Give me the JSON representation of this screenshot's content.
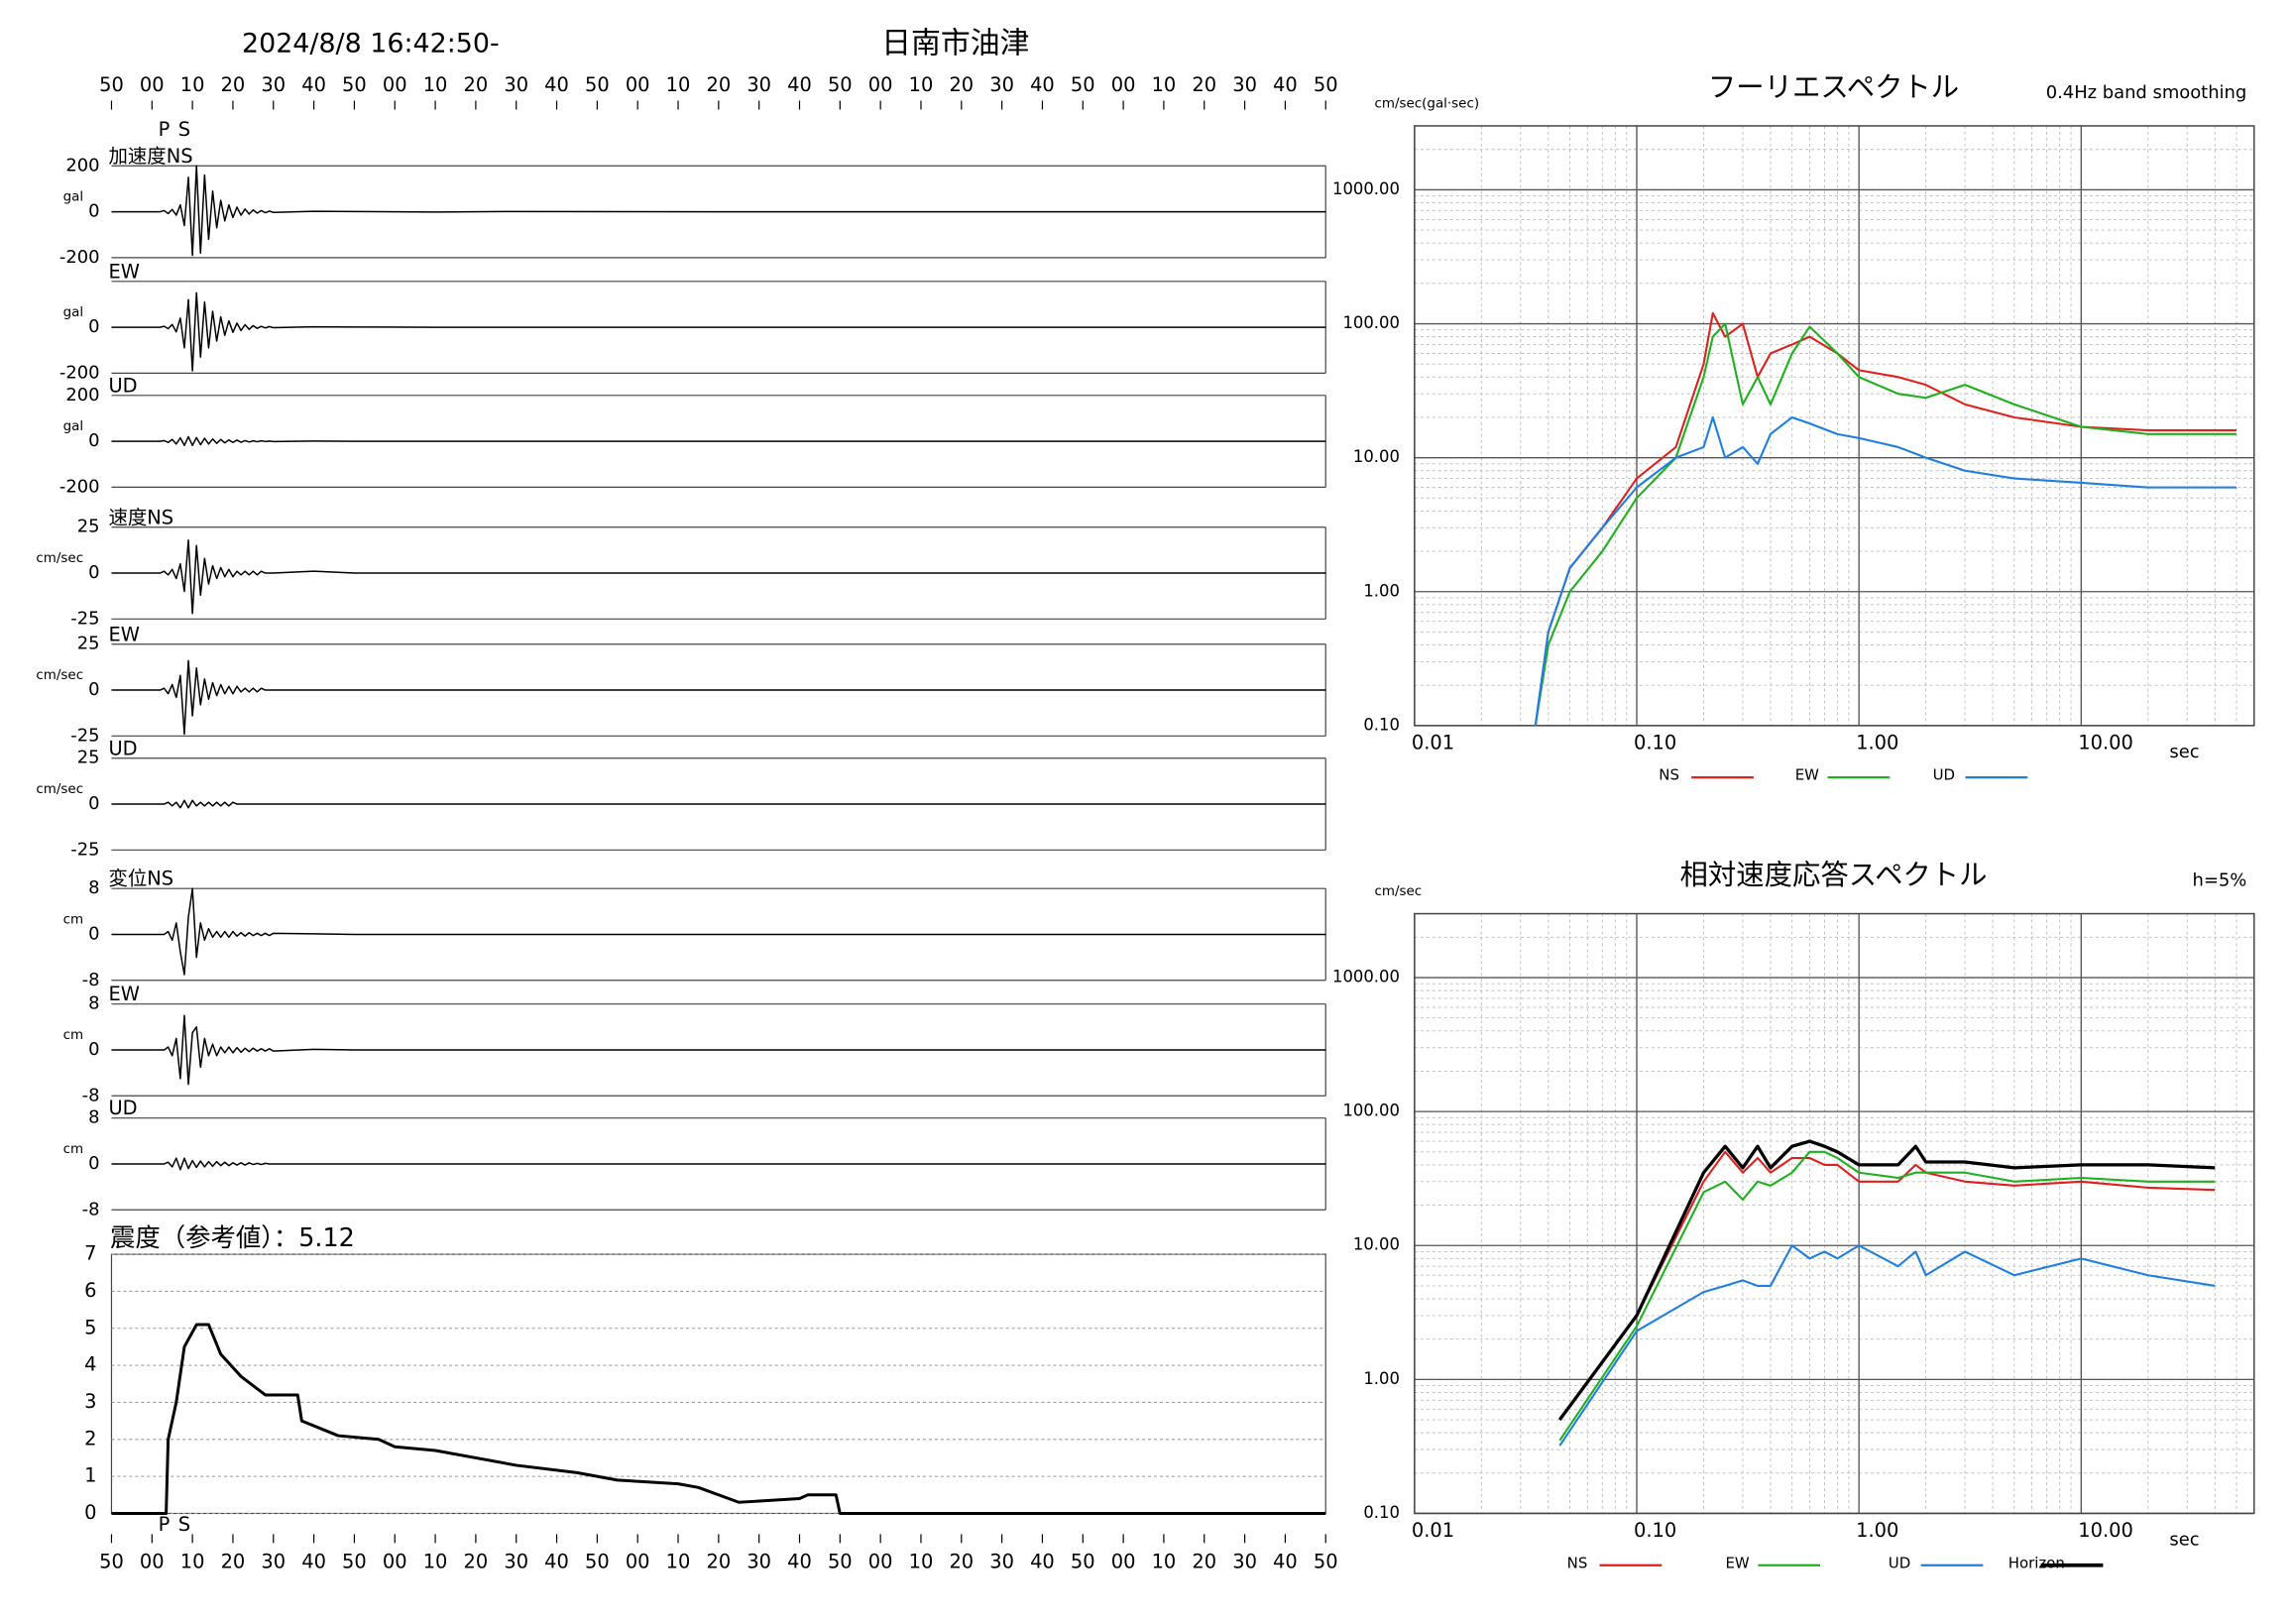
{
  "header": {
    "datetime": "2024/8/8 16:42:50-",
    "station": "日南市油津"
  },
  "chart_data": [
    {
      "type": "line",
      "xlim": [
        0,
        300
      ],
      "xticks": [
        {
          "value": 0,
          "label": "50"
        },
        {
          "value": 10,
          "label": "00"
        },
        {
          "value": 20,
          "label": "10"
        },
        {
          "value": 30,
          "label": "20"
        },
        {
          "value": 40,
          "label": "30"
        },
        {
          "value": 50,
          "label": "40"
        },
        {
          "value": 60,
          "label": "50"
        },
        {
          "value": 70,
          "label": "00"
        },
        {
          "value": 80,
          "label": "10"
        },
        {
          "value": 90,
          "label": "20"
        },
        {
          "value": 100,
          "label": "30"
        },
        {
          "value": 110,
          "label": "40"
        },
        {
          "value": 120,
          "label": "50"
        },
        {
          "value": 130,
          "label": "00"
        },
        {
          "value": 140,
          "label": "10"
        },
        {
          "value": 150,
          "label": "20"
        },
        {
          "value": 160,
          "label": "30"
        },
        {
          "value": 170,
          "label": "40"
        },
        {
          "value": 180,
          "label": "50"
        },
        {
          "value": 190,
          "label": "00"
        },
        {
          "value": 200,
          "label": "10"
        },
        {
          "value": 210,
          "label": "20"
        },
        {
          "value": 220,
          "label": "30"
        },
        {
          "value": 230,
          "label": "40"
        },
        {
          "value": 240,
          "label": "50"
        },
        {
          "value": 250,
          "label": "00"
        },
        {
          "value": 260,
          "label": "10"
        },
        {
          "value": 270,
          "label": "20"
        },
        {
          "value": 280,
          "label": "30"
        },
        {
          "value": 290,
          "label": "40"
        },
        {
          "value": 300,
          "label": "50"
        }
      ],
      "phases": [
        {
          "label": "P",
          "time": 13
        },
        {
          "label": "S",
          "time": 18
        }
      ],
      "x": [
        0,
        5,
        10,
        11,
        12,
        13,
        14,
        15,
        16,
        17,
        18,
        19,
        20,
        21,
        22,
        23,
        24,
        25,
        26,
        27,
        28,
        29,
        30,
        31,
        32,
        33,
        34,
        35,
        36,
        37,
        38,
        39,
        40,
        50,
        60,
        80,
        100,
        150,
        200,
        250,
        300
      ],
      "panels": [
        {
          "label": "加速度NS",
          "unit": "gal",
          "ylim": [
            -200,
            200
          ],
          "yticks": [
            200,
            0,
            -200
          ],
          "color": "#000000",
          "values": [
            0,
            0,
            0,
            0,
            0,
            5,
            -8,
            10,
            -15,
            30,
            -60,
            150,
            -190,
            200,
            -180,
            160,
            -120,
            90,
            -70,
            50,
            -40,
            30,
            -25,
            20,
            -15,
            12,
            -10,
            8,
            -6,
            5,
            -4,
            3,
            -3,
            2,
            1,
            -1,
            1,
            0,
            0,
            0,
            0
          ]
        },
        {
          "label": "EW",
          "unit": "gal",
          "ylim": [
            -200,
            200
          ],
          "yticks": [
            0,
            -200
          ],
          "color": "#000000",
          "values": [
            0,
            0,
            0,
            0,
            0,
            4,
            -6,
            12,
            -20,
            40,
            -90,
            120,
            -190,
            150,
            -130,
            110,
            -90,
            70,
            -60,
            45,
            -35,
            28,
            -22,
            18,
            -14,
            11,
            -9,
            7,
            -5,
            4,
            -3,
            3,
            -2,
            2,
            1,
            0,
            0,
            0,
            0,
            0,
            0
          ]
        },
        {
          "label": "UD",
          "unit": "gal",
          "ylim": [
            -200,
            200
          ],
          "yticks": [
            200,
            0,
            -200
          ],
          "color": "#000000",
          "values": [
            0,
            0,
            0,
            0,
            0,
            3,
            -5,
            8,
            -12,
            15,
            -18,
            20,
            -18,
            16,
            -15,
            13,
            -12,
            10,
            -9,
            8,
            -7,
            6,
            -5,
            5,
            -4,
            3,
            -3,
            2,
            -2,
            2,
            -1,
            1,
            -1,
            1,
            0,
            0,
            0,
            0,
            0,
            0,
            0
          ]
        },
        {
          "label": "速度NS",
          "unit": "cm/sec",
          "ylim": [
            -25,
            25
          ],
          "yticks": [
            25,
            0,
            -25
          ],
          "color": "#000000",
          "values": [
            0,
            0,
            0,
            0,
            0,
            1,
            -1,
            2,
            -3,
            5,
            -10,
            18,
            -22,
            15,
            -12,
            8,
            -6,
            4,
            -3,
            3,
            -2,
            2,
            -2,
            1,
            -1,
            1,
            -1,
            1,
            -1,
            1,
            0,
            0,
            0,
            1,
            0,
            0,
            0,
            0,
            0,
            0,
            0
          ]
        },
        {
          "label": "EW",
          "unit": "cm/sec",
          "ylim": [
            -25,
            25
          ],
          "yticks": [
            25,
            0,
            -25
          ],
          "color": "#000000",
          "values": [
            0,
            0,
            0,
            0,
            0,
            1,
            -2,
            3,
            -4,
            8,
            -24,
            16,
            -14,
            12,
            -8,
            6,
            -5,
            4,
            -3,
            3,
            -2,
            2,
            -2,
            2,
            -1,
            1,
            -1,
            1,
            -1,
            1,
            0,
            0,
            0,
            0,
            0,
            0,
            0,
            0,
            0,
            0,
            0
          ]
        },
        {
          "label": "UD",
          "unit": "cm/sec",
          "ylim": [
            -25,
            25
          ],
          "yticks": [
            25,
            0,
            -25
          ],
          "color": "#000000",
          "values": [
            0,
            0,
            0,
            0,
            0,
            0,
            1,
            -1,
            1,
            -2,
            2,
            -2,
            2,
            -1,
            1,
            -1,
            1,
            -1,
            1,
            -1,
            1,
            -1,
            1,
            0,
            0,
            0,
            0,
            0,
            0,
            0,
            0,
            0,
            0,
            0,
            0,
            0,
            0,
            0,
            0,
            0,
            0
          ]
        },
        {
          "label": "変位NS",
          "unit": "cm",
          "ylim": [
            -8,
            8
          ],
          "yticks": [
            8,
            0,
            -8
          ],
          "color": "#000000",
          "values": [
            0,
            0,
            0,
            0,
            0,
            0,
            0.5,
            -1,
            2,
            -3,
            -7,
            3,
            8,
            -4,
            2,
            -1,
            1,
            -0.5,
            0.5,
            -0.5,
            0.5,
            -0.5,
            0.5,
            -0.3,
            0.3,
            -0.3,
            0.3,
            -0.2,
            0.2,
            -0.2,
            0.2,
            -0.2,
            0.2,
            0.1,
            0,
            0,
            0,
            0,
            0,
            0,
            0
          ]
        },
        {
          "label": "EW",
          "unit": "cm",
          "ylim": [
            -8,
            8
          ],
          "yticks": [
            8,
            0,
            -8
          ],
          "color": "#000000",
          "values": [
            0,
            0,
            0,
            0,
            0,
            0,
            0.5,
            -1,
            2,
            -5,
            6,
            -6,
            3,
            4,
            -3,
            2,
            -1,
            1,
            -1,
            0.5,
            -0.5,
            0.5,
            -0.5,
            0.4,
            -0.4,
            0.3,
            -0.3,
            0.3,
            -0.2,
            0.2,
            -0.2,
            0.2,
            -0.2,
            0.1,
            0,
            0,
            0,
            0,
            0,
            0,
            0
          ]
        },
        {
          "label": "UD",
          "unit": "cm",
          "ylim": [
            -8,
            8
          ],
          "yticks": [
            8,
            0,
            -8
          ],
          "color": "#000000",
          "values": [
            0,
            0,
            0,
            0,
            0,
            0,
            0.3,
            -0.5,
            1,
            -1,
            1,
            -0.8,
            0.6,
            -0.6,
            0.5,
            -0.5,
            0.4,
            -0.4,
            0.4,
            -0.3,
            0.3,
            -0.3,
            0.2,
            -0.2,
            0.2,
            -0.2,
            0.2,
            -0.1,
            0.1,
            -0.1,
            0.1,
            0,
            0,
            0,
            0,
            0,
            0,
            0,
            0,
            0,
            0
          ]
        }
      ]
    },
    {
      "type": "line",
      "title": "震度（参考値）：5.12",
      "xlim": [
        0,
        300
      ],
      "ylim": [
        0,
        7
      ],
      "yticks": [
        0,
        1,
        2,
        3,
        4,
        5,
        6,
        7
      ],
      "grid": true,
      "color": "#000000",
      "x": [
        0,
        13.5,
        14,
        16,
        18,
        21,
        24,
        27,
        32,
        38,
        46,
        47,
        56,
        66,
        70,
        80,
        100,
        115,
        125,
        140,
        145,
        155,
        170,
        172,
        179,
        180,
        300
      ],
      "values": [
        0,
        0,
        2,
        3,
        4.5,
        5.1,
        5.1,
        4.3,
        3.7,
        3.2,
        3.2,
        2.5,
        2.1,
        2.0,
        1.8,
        1.7,
        1.3,
        1.1,
        0.9,
        0.8,
        0.7,
        0.3,
        0.4,
        0.5,
        0.5,
        0,
        0
      ]
    },
    {
      "type": "line",
      "title": "フーリエスペクトル",
      "subtitle": "0.4Hz band smoothing",
      "ylabel": "cm/sec(gal·sec)",
      "xlabel": "sec",
      "xscale": "log",
      "yscale": "log",
      "grid": true,
      "xlim": [
        0.01,
        60
      ],
      "ylim": [
        0.1,
        3000
      ],
      "xticks": [
        {
          "value": 0.01,
          "label": "0.01"
        },
        {
          "value": 0.1,
          "label": "0.10"
        },
        {
          "value": 1,
          "label": "1.00"
        },
        {
          "value": 10,
          "label": "10.00"
        }
      ],
      "yticks": [
        {
          "value": 0.1,
          "label": "0.10"
        },
        {
          "value": 1,
          "label": "1.00"
        },
        {
          "value": 10,
          "label": "10.00"
        },
        {
          "value": 100,
          "label": "100.00"
        },
        {
          "value": 1000,
          "label": "1000.00"
        }
      ],
      "x": [
        0.035,
        0.04,
        0.05,
        0.07,
        0.1,
        0.15,
        0.2,
        0.22,
        0.25,
        0.3,
        0.35,
        0.4,
        0.5,
        0.6,
        0.8,
        1,
        1.5,
        2,
        3,
        5,
        10,
        20,
        50
      ],
      "series": [
        {
          "name": "NS",
          "color": "#e0201f",
          "values": [
            0.1,
            0.5,
            1.5,
            3,
            7,
            12,
            50,
            120,
            80,
            100,
            40,
            60,
            70,
            80,
            60,
            45,
            40,
            35,
            25,
            20,
            17,
            16,
            16
          ]
        },
        {
          "name": "EW",
          "color": "#1fb01f",
          "values": [
            0.1,
            0.4,
            1,
            2,
            5,
            10,
            40,
            80,
            100,
            25,
            40,
            25,
            60,
            95,
            60,
            40,
            30,
            28,
            35,
            25,
            17,
            15,
            15
          ]
        },
        {
          "name": "UD",
          "color": "#1e7fe0",
          "values": [
            0.1,
            0.5,
            1.5,
            3,
            6,
            10,
            12,
            20,
            10,
            12,
            9,
            15,
            20,
            18,
            15,
            14,
            12,
            10,
            8,
            7,
            6.5,
            6,
            6
          ]
        }
      ]
    },
    {
      "type": "line",
      "title": "相対速度応答スペクトル",
      "subtitle": "h=5%",
      "ylabel": "cm/sec",
      "xlabel": "sec",
      "xscale": "log",
      "yscale": "log",
      "grid": true,
      "xlim": [
        0.01,
        60
      ],
      "ylim": [
        0.1,
        3000
      ],
      "xticks": [
        {
          "value": 0.01,
          "label": "0.01"
        },
        {
          "value": 0.1,
          "label": "0.10"
        },
        {
          "value": 1,
          "label": "1.00"
        },
        {
          "value": 10,
          "label": "10.00"
        }
      ],
      "yticks": [
        {
          "value": 0.1,
          "label": "0.10"
        },
        {
          "value": 1,
          "label": "1.00"
        },
        {
          "value": 10,
          "label": "10.00"
        },
        {
          "value": 100,
          "label": "100.00"
        },
        {
          "value": 1000,
          "label": "1000.00"
        }
      ],
      "x": [
        0.045,
        0.1,
        0.2,
        0.25,
        0.3,
        0.35,
        0.4,
        0.5,
        0.6,
        0.7,
        0.8,
        1,
        1.5,
        1.8,
        2,
        3,
        5,
        10,
        20,
        40
      ],
      "series": [
        {
          "name": "NS",
          "color": "#e0201f",
          "values": [
            0.5,
            3,
            30,
            50,
            35,
            45,
            35,
            45,
            45,
            40,
            40,
            30,
            30,
            40,
            35,
            30,
            28,
            30,
            27,
            26
          ]
        },
        {
          "name": "EW",
          "color": "#1fb01f",
          "values": [
            0.35,
            2.5,
            25,
            30,
            22,
            30,
            28,
            35,
            50,
            50,
            45,
            35,
            32,
            35,
            35,
            35,
            30,
            32,
            30,
            30
          ]
        },
        {
          "name": "UD",
          "color": "#1e7fe0",
          "values": [
            0.32,
            2.3,
            4.5,
            5,
            5.5,
            5,
            5,
            10,
            8,
            9,
            8,
            10,
            7,
            9,
            6,
            9,
            6,
            8,
            6,
            5
          ]
        },
        {
          "name": "Horizon",
          "color": "#000000",
          "values": [
            0.5,
            3,
            35,
            55,
            38,
            55,
            38,
            55,
            60,
            55,
            50,
            40,
            40,
            55,
            42,
            42,
            38,
            40,
            40,
            38
          ]
        }
      ]
    }
  ]
}
